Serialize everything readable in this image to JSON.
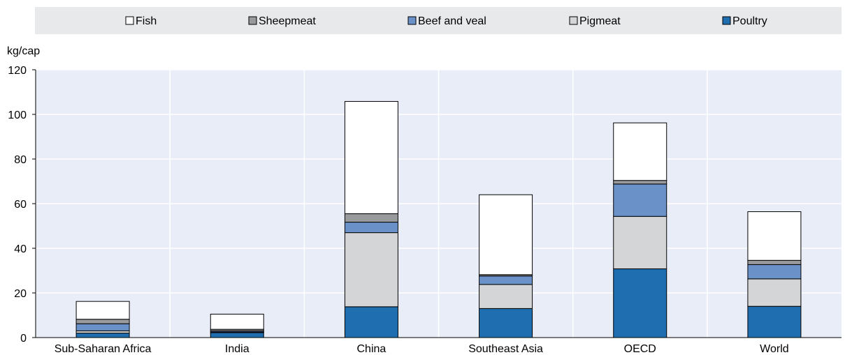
{
  "chart_data": {
    "type": "bar",
    "stacked": true,
    "title": "",
    "xlabel": "",
    "ylabel": "kg/cap",
    "ylim": [
      0,
      120
    ],
    "yticks": [
      0,
      20,
      40,
      60,
      80,
      100,
      120
    ],
    "grid": true,
    "legend_position": "top",
    "categories": [
      "Sub-Saharan Africa",
      "India",
      "China",
      "Southeast Asia",
      "OECD",
      "World"
    ],
    "series": [
      {
        "name": "Poultry",
        "color": "#1f6fb0",
        "values": [
          2.0,
          2.2,
          13.8,
          13.0,
          30.8,
          14.0
        ]
      },
      {
        "name": "Pigmeat",
        "color": "#d4d5d6",
        "values": [
          1.0,
          0.3,
          33.2,
          10.8,
          23.5,
          12.3
        ]
      },
      {
        "name": "Beef and veal",
        "color": "#6a92c9",
        "values": [
          3.2,
          0.5,
          4.7,
          3.8,
          14.5,
          6.4
        ]
      },
      {
        "name": "Sheepmeat",
        "color": "#999a9c",
        "values": [
          2.0,
          0.7,
          3.8,
          0.6,
          1.6,
          1.9
        ]
      },
      {
        "name": "Fish",
        "color": "#ffffff",
        "values": [
          8.0,
          6.8,
          50.3,
          35.8,
          25.8,
          21.8
        ]
      }
    ],
    "legend_order": [
      "Fish",
      "Sheepmeat",
      "Beef and veal",
      "Pigmeat",
      "Poultry"
    ]
  }
}
